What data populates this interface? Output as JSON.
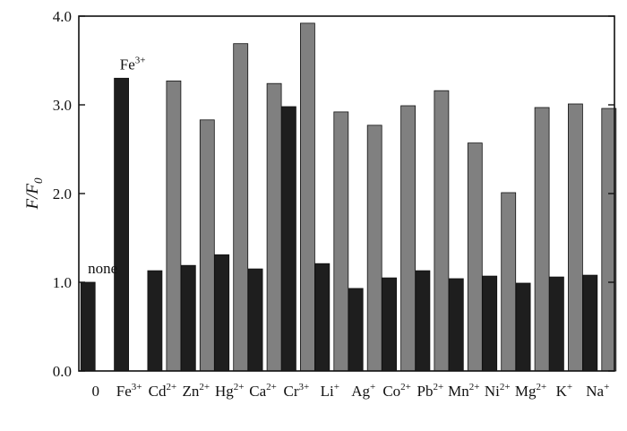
{
  "chart_data": {
    "type": "bar",
    "title": "",
    "xlabel": "",
    "ylabel": "F/F0",
    "ylabel_parts": {
      "main": "F/F",
      "subscript": "0"
    },
    "ylim": [
      0,
      4.0
    ],
    "yticks": [
      "0.0",
      "1.0",
      "2.0",
      "3.0",
      "4.0"
    ],
    "legend": "none",
    "grid": false,
    "colors": {
      "series_1": "#1e1e1e",
      "series_2": "#808080"
    },
    "categories": [
      {
        "base": "0",
        "sup": ""
      },
      {
        "base": "Fe",
        "sup": "3+"
      },
      {
        "base": "Cd",
        "sup": "2+"
      },
      {
        "base": "Zn",
        "sup": "2+"
      },
      {
        "base": "Hg",
        "sup": "2+"
      },
      {
        "base": "Ca",
        "sup": "2+"
      },
      {
        "base": "Cr",
        "sup": "3+"
      },
      {
        "base": "Li",
        "sup": "+"
      },
      {
        "base": "Ag",
        "sup": "+"
      },
      {
        "base": "Co",
        "sup": "2+"
      },
      {
        "base": "Pb",
        "sup": "2+"
      },
      {
        "base": "Mn",
        "sup": "2+"
      },
      {
        "base": "Ni",
        "sup": "2+"
      },
      {
        "base": "Mg",
        "sup": "2+"
      },
      {
        "base": "K",
        "sup": "+"
      },
      {
        "base": "Na",
        "sup": "+"
      }
    ],
    "series": [
      {
        "values": [
          1.0,
          3.3,
          1.13,
          1.19,
          1.31,
          1.15,
          2.98,
          1.21,
          0.93,
          1.05,
          1.13,
          1.04,
          1.07,
          0.99,
          1.06,
          1.08
        ]
      },
      {
        "values": [
          null,
          null,
          3.27,
          2.83,
          3.69,
          3.24,
          3.92,
          2.92,
          2.77,
          2.99,
          3.16,
          2.57,
          2.01,
          2.97,
          3.01,
          2.96
        ]
      }
    ],
    "annotations": [
      {
        "text": "none",
        "sup": "",
        "category_index": 0,
        "value": 1.0
      },
      {
        "text": "Fe",
        "sup": "3+",
        "category_index": 1,
        "value": 3.3
      }
    ]
  }
}
